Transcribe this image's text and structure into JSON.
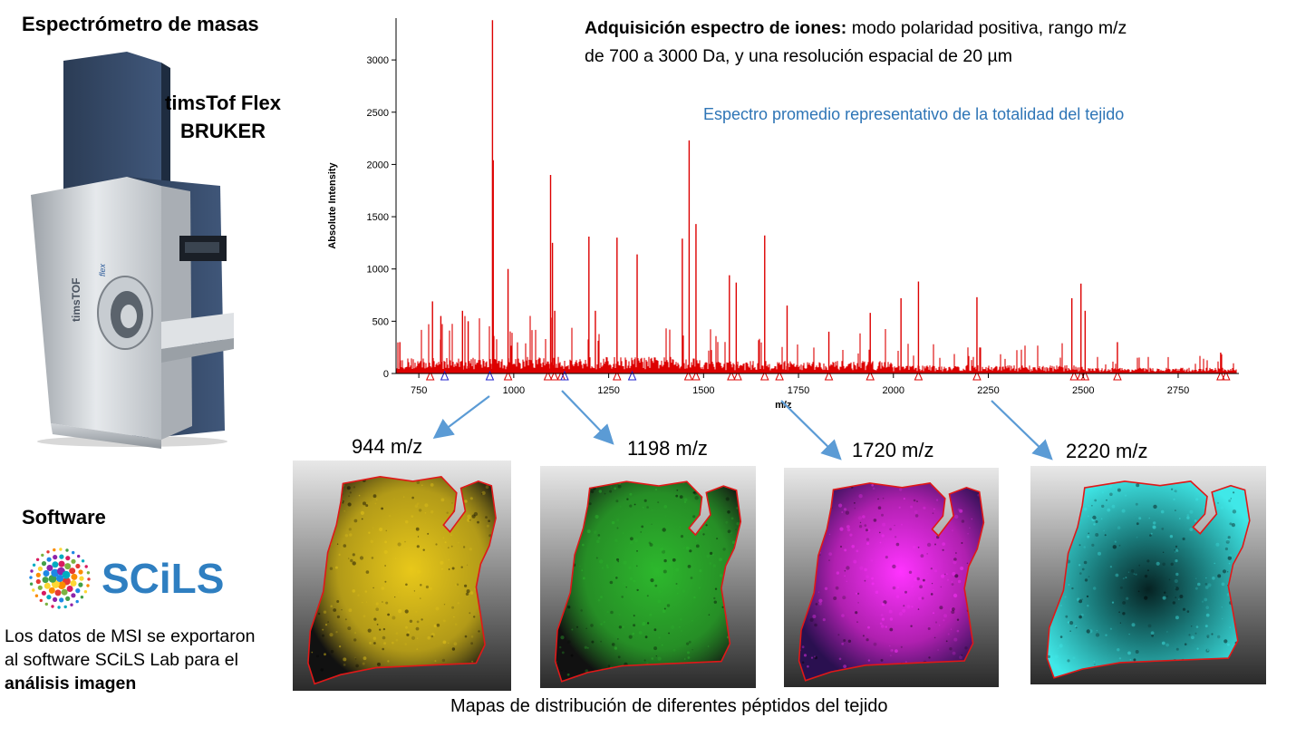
{
  "left": {
    "ms_title": "Espectrómetro de masas",
    "instrument_line1": "timsTof Flex",
    "instrument_line2": "BRUKER",
    "instrument_side_label": "timsTOF",
    "software_title": "Software",
    "logo_text": "SCiLS",
    "desc_line1": "Los datos de MSI se exportaron",
    "desc_line2": "al software SCiLS Lab  para el",
    "desc_line3": "análisis imagen"
  },
  "acquisition": {
    "bold": "Adquisición espectro de iones:",
    "rest1": " modo polaridad positiva, rango m/z",
    "line2": "de 700 a 3000 Da,  y una resolución espacial de 20 µm"
  },
  "spectrum_caption": "Espectro promedio representativo de la totalidad del tejido",
  "chart_data": {
    "type": "line",
    "xlabel": "m/z",
    "ylabel": "Absolute Intensity",
    "xlim": [
      690,
      2910
    ],
    "ylim": [
      0,
      3400
    ],
    "x_ticks": [
      750,
      1000,
      1250,
      1500,
      1750,
      2000,
      2250,
      2500,
      2750
    ],
    "y_ticks": [
      0,
      500,
      1000,
      1500,
      2000,
      2500,
      3000
    ],
    "color": "#dd0000",
    "major_peaks": [
      {
        "mz": 700,
        "intensity": 300
      },
      {
        "mz": 786,
        "intensity": 690
      },
      {
        "mz": 808,
        "intensity": 550
      },
      {
        "mz": 865,
        "intensity": 600
      },
      {
        "mz": 880,
        "intensity": 500
      },
      {
        "mz": 944,
        "intensity": 3380
      },
      {
        "mz": 946,
        "intensity": 2040
      },
      {
        "mz": 985,
        "intensity": 1000
      },
      {
        "mz": 1097,
        "intensity": 1900
      },
      {
        "mz": 1102,
        "intensity": 1250
      },
      {
        "mz": 1108,
        "intensity": 600
      },
      {
        "mz": 1198,
        "intensity": 1310
      },
      {
        "mz": 1215,
        "intensity": 600
      },
      {
        "mz": 1272,
        "intensity": 1300
      },
      {
        "mz": 1325,
        "intensity": 1140
      },
      {
        "mz": 1444,
        "intensity": 1290
      },
      {
        "mz": 1462,
        "intensity": 2230
      },
      {
        "mz": 1480,
        "intensity": 1430
      },
      {
        "mz": 1568,
        "intensity": 940
      },
      {
        "mz": 1586,
        "intensity": 870
      },
      {
        "mz": 1661,
        "intensity": 1320
      },
      {
        "mz": 1720,
        "intensity": 650
      },
      {
        "mz": 1830,
        "intensity": 400
      },
      {
        "mz": 1939,
        "intensity": 580
      },
      {
        "mz": 2020,
        "intensity": 720
      },
      {
        "mz": 2066,
        "intensity": 880
      },
      {
        "mz": 2220,
        "intensity": 730
      },
      {
        "mz": 2470,
        "intensity": 720
      },
      {
        "mz": 2494,
        "intensity": 860
      },
      {
        "mz": 2505,
        "intensity": 600
      },
      {
        "mz": 2590,
        "intensity": 300
      },
      {
        "mz": 2862,
        "intensity": 200
      }
    ],
    "annotated_blue_mz": [
      818,
      937,
      1134,
      1312
    ],
    "annotated_red_mz": [
      780,
      985,
      1090,
      1107,
      1125,
      1272,
      1460,
      1480,
      1573,
      1590,
      1661,
      1700,
      1830,
      1939,
      2066,
      2220,
      2476,
      2494,
      2505,
      2590,
      2862,
      2876
    ]
  },
  "maps": [
    {
      "label": "944 m/z",
      "color": "#e8c81a"
    },
    {
      "label": "1198 m/z",
      "color": "#2db82d"
    },
    {
      "label": "1720 m/z",
      "color": "#ff33ff"
    },
    {
      "label": "2220 m/z",
      "color": "#40e8e8"
    }
  ],
  "bottom_caption": "Mapas de distribución de diferentes péptidos del tejido"
}
